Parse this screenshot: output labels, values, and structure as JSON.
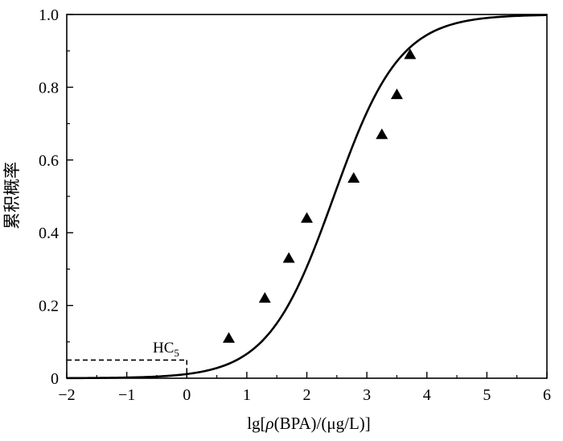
{
  "chart_data": {
    "type": "scatter",
    "xlabel_parts": {
      "pre": "lg[",
      "rho": "ρ",
      "mid": "(BPA)/(μg/L)]"
    },
    "ylabel": "累积概率",
    "xlim": [
      -2,
      6
    ],
    "ylim": [
      0,
      1.0
    ],
    "x_ticks": [
      -2,
      -1,
      0,
      1,
      2,
      3,
      4,
      5,
      6
    ],
    "x_tick_labels": [
      "−2",
      "−1",
      "0",
      "1",
      "2",
      "3",
      "4",
      "5",
      "6"
    ],
    "y_ticks": [
      0,
      0.2,
      0.4,
      0.6,
      0.8,
      1.0
    ],
    "y_tick_labels": [
      "0",
      "0.2",
      "0.4",
      "0.6",
      "0.8",
      "1.0"
    ],
    "grid": false,
    "points": [
      {
        "x": 0.7,
        "y": 0.11
      },
      {
        "x": 1.3,
        "y": 0.22
      },
      {
        "x": 1.7,
        "y": 0.33
      },
      {
        "x": 2.0,
        "y": 0.44
      },
      {
        "x": 2.78,
        "y": 0.55
      },
      {
        "x": 3.25,
        "y": 0.67
      },
      {
        "x": 3.5,
        "y": 0.78
      },
      {
        "x": 3.72,
        "y": 0.89
      }
    ],
    "fit_curve": {
      "type": "logistic",
      "x0": 2.45,
      "scale": 0.55
    },
    "hc5": {
      "label_main": "HC",
      "label_sub": "5",
      "x": 0.0,
      "y": 0.05
    }
  }
}
